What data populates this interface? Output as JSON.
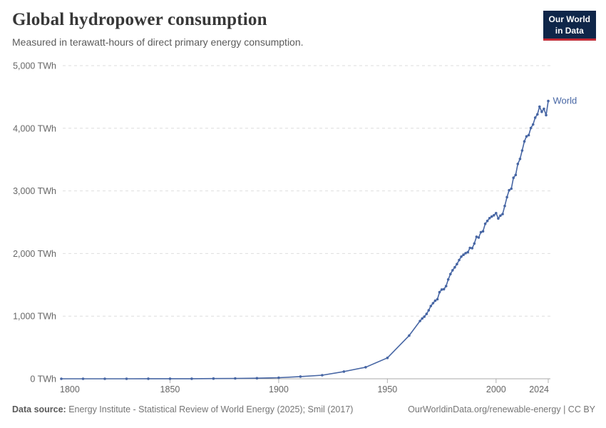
{
  "header": {
    "title": "Global hydropower consumption",
    "subtitle": "Measured in terawatt-hours of direct primary energy consumption."
  },
  "logo": {
    "line1": "Our World",
    "line2": "in Data",
    "bg_color": "#0f2649",
    "accent_color": "#c32a35"
  },
  "chart_data": {
    "type": "line",
    "title": "Global hydropower consumption",
    "xlabel": "",
    "ylabel": "TWh",
    "xlim": [
      1800,
      2024
    ],
    "ylim": [
      0,
      5000
    ],
    "xticks": [
      1800,
      1850,
      1900,
      1950,
      2000,
      2024
    ],
    "yticks": [
      0,
      1000,
      2000,
      3000,
      4000,
      5000
    ],
    "ytick_suffix": " TWh",
    "grid": "horizontal-dashed",
    "legend_position": "end-of-line-label",
    "series": [
      {
        "name": "World",
        "color": "#4766a4",
        "x": [
          1800,
          1810,
          1820,
          1830,
          1840,
          1850,
          1860,
          1870,
          1880,
          1890,
          1900,
          1910,
          1920,
          1930,
          1940,
          1950,
          1960,
          1965,
          1966,
          1967,
          1968,
          1969,
          1970,
          1971,
          1972,
          1973,
          1974,
          1975,
          1976,
          1977,
          1978,
          1979,
          1980,
          1981,
          1982,
          1983,
          1984,
          1985,
          1986,
          1987,
          1988,
          1989,
          1990,
          1991,
          1992,
          1993,
          1994,
          1995,
          1996,
          1997,
          1998,
          1999,
          2000,
          2001,
          2002,
          2003,
          2004,
          2005,
          2006,
          2007,
          2008,
          2009,
          2010,
          2011,
          2012,
          2013,
          2014,
          2015,
          2016,
          2017,
          2018,
          2019,
          2020,
          2021,
          2022,
          2023,
          2024
        ],
        "values": [
          0.1,
          0.2,
          0.3,
          0.5,
          0.7,
          1,
          1.6,
          3,
          5.9,
          9.3,
          17,
          35,
          57,
          115,
          185,
          334,
          690,
          922,
          962,
          992,
          1035,
          1093,
          1162,
          1207,
          1246,
          1270,
          1383,
          1425,
          1430,
          1480,
          1585,
          1672,
          1732,
          1780,
          1832,
          1895,
          1950,
          1979,
          2006,
          2020,
          2090,
          2085,
          2159,
          2268,
          2255,
          2340,
          2355,
          2475,
          2520,
          2565,
          2590,
          2610,
          2645,
          2560,
          2605,
          2630,
          2760,
          2900,
          3010,
          3035,
          3210,
          3255,
          3430,
          3510,
          3645,
          3790,
          3870,
          3890,
          4005,
          4060,
          4170,
          4222,
          4345,
          4263,
          4311,
          4210,
          4435
        ]
      }
    ]
  },
  "footer": {
    "data_source_label": "Data source:",
    "data_source_text": " Energy Institute - Statistical Review of World Energy (2025); Smil (2017)",
    "attribution": "OurWorldinData.org/renewable-energy | CC BY"
  }
}
